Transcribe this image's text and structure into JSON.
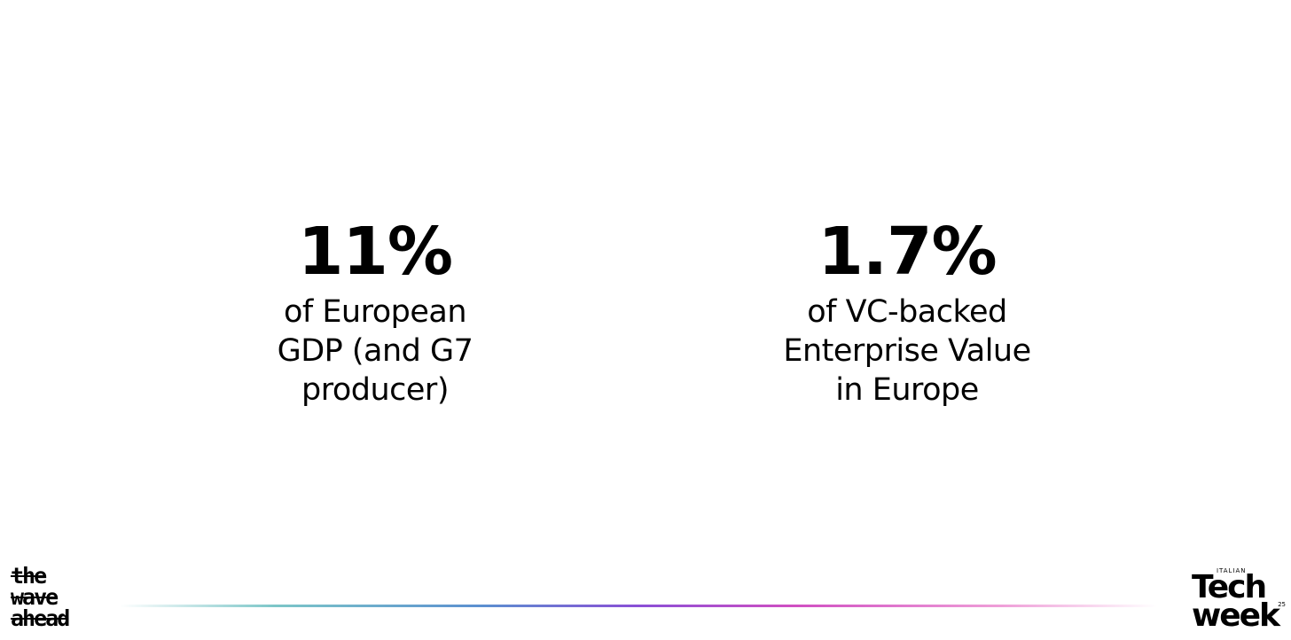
{
  "stats": [
    {
      "figure": "11%",
      "lines": [
        "of European",
        "GDP (and G7",
        "producer)"
      ]
    },
    {
      "figure": "1.7%",
      "lines": [
        "of VC-backed",
        "Enterprise Value",
        "in Europe"
      ]
    }
  ],
  "footer": {
    "left_logo": [
      "the",
      "wave",
      "ahead"
    ],
    "right_logo": {
      "small": "ITALIAN",
      "top": "Tech",
      "bottom": "week",
      "year": "25"
    }
  }
}
